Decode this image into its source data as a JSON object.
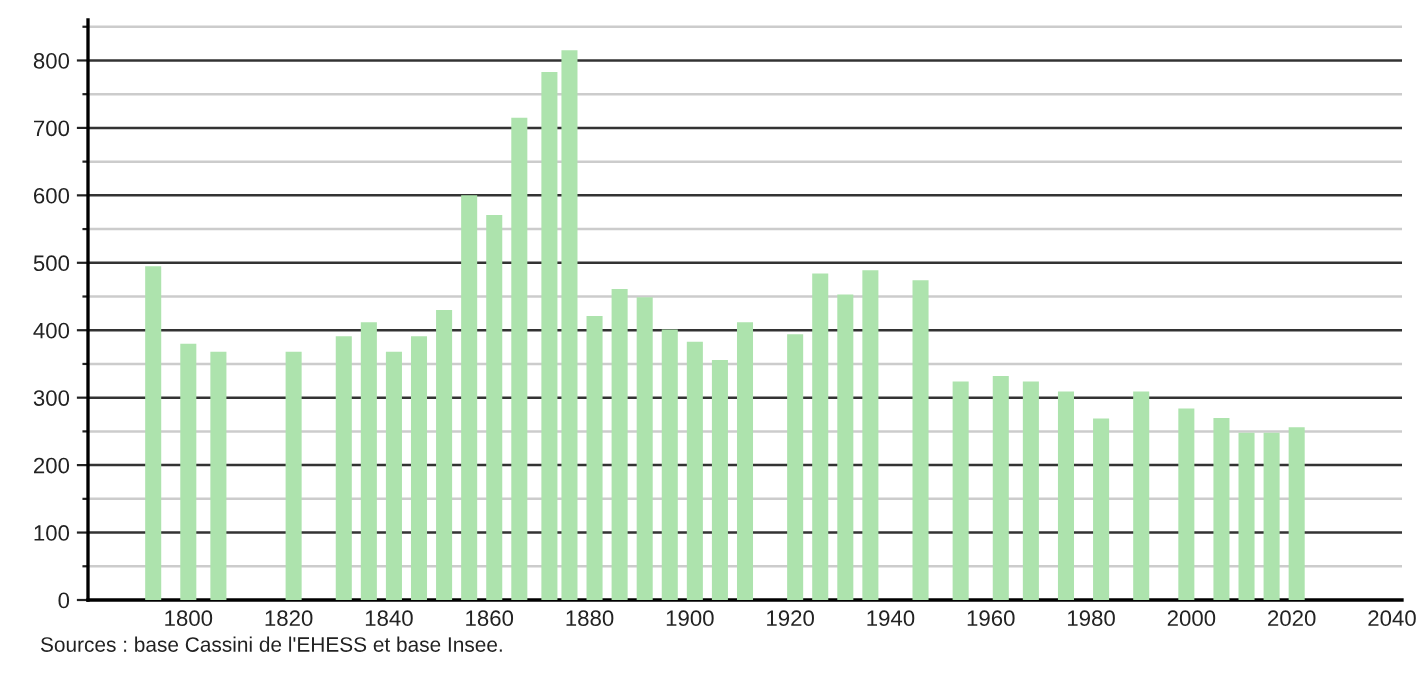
{
  "chart_data": {
    "type": "bar",
    "x": [
      1793,
      1800,
      1806,
      1821,
      1831,
      1836,
      1841,
      1846,
      1851,
      1856,
      1861,
      1866,
      1872,
      1876,
      1881,
      1886,
      1891,
      1896,
      1901,
      1906,
      1911,
      1921,
      1926,
      1931,
      1936,
      1946,
      1954,
      1962,
      1968,
      1975,
      1982,
      1990,
      1999,
      2006,
      2011,
      2016,
      2021
    ],
    "values": [
      495,
      380,
      368,
      368,
      391,
      412,
      368,
      391,
      430,
      600,
      571,
      715,
      783,
      815,
      421,
      461,
      449,
      401,
      383,
      356,
      412,
      394,
      484,
      453,
      489,
      474,
      324,
      332,
      324,
      309,
      269,
      309,
      284,
      270,
      248,
      248,
      256
    ],
    "color": "#ade3ad",
    "xlim": [
      1780,
      2042
    ],
    "xticks": [
      1800,
      1820,
      1840,
      1860,
      1880,
      1900,
      1920,
      1940,
      1960,
      1980,
      2000,
      2020,
      2040
    ],
    "ylim": [
      0,
      860
    ],
    "yticks": [
      0,
      {
        "value": 50,
        "label": null
      },
      100,
      {
        "value": 150,
        "label": null
      },
      200,
      {
        "value": 250,
        "label": null
      },
      300,
      {
        "value": 350,
        "label": null
      },
      400,
      {
        "value": 450,
        "label": null
      },
      500,
      {
        "value": 550,
        "label": null
      },
      600,
      {
        "value": 650,
        "label": null
      },
      700,
      {
        "value": 750,
        "label": null
      },
      800,
      {
        "value": 850,
        "label": null
      }
    ],
    "grid": "y",
    "annotations": [
      "Sources : base Cassini de l'EHESS et base Insee."
    ]
  }
}
